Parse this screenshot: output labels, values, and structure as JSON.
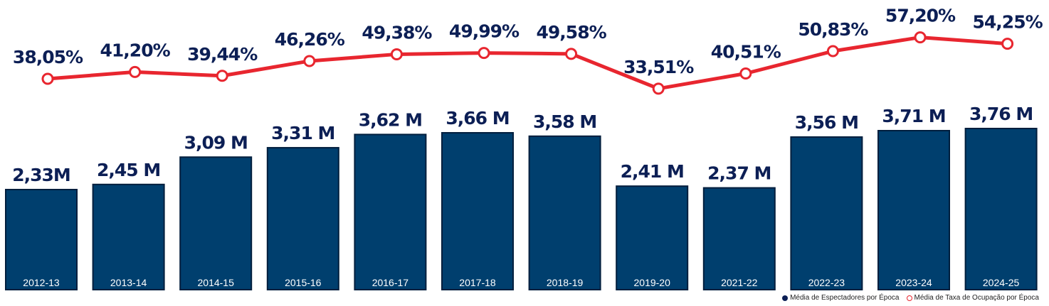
{
  "chart_data": {
    "type": "bar",
    "categories": [
      "2012-13",
      "2013-14",
      "2014-15",
      "2015-16",
      "2016-17",
      "2017-18",
      "2018-19",
      "2019-20",
      "2021-22",
      "2022-23",
      "2023-24",
      "2024-25"
    ],
    "series": [
      {
        "name": "Média de Espectadores por Época",
        "type": "bar",
        "values": [
          2.33,
          2.45,
          3.09,
          3.31,
          3.62,
          3.66,
          3.58,
          2.41,
          2.37,
          3.56,
          3.71,
          3.76
        ],
        "labels": [
          "2,33M",
          "2,45 M",
          "3,09 M",
          "3,31 M",
          "3,62 M",
          "3,66 M",
          "3,58 M",
          "2,41 M",
          "2,37 M",
          "3,56 M",
          "3,71 M",
          "3,76 M"
        ],
        "color": "#003f6e"
      },
      {
        "name": "Média de Taxa de Ocupação por Época",
        "type": "line",
        "values": [
          38.05,
          41.2,
          39.44,
          46.26,
          49.38,
          49.99,
          49.58,
          33.51,
          40.51,
          50.83,
          57.2,
          54.25
        ],
        "labels": [
          "38,05%",
          "41,20%",
          "39,44%",
          "46,26%",
          "49,38%",
          "49,99%",
          "49,58%",
          "33,51%",
          "40,51%",
          "50,83%",
          "57,20%",
          "54,25%"
        ],
        "color": "#e8262f"
      }
    ],
    "legend": "bottom-right",
    "grid": false
  }
}
